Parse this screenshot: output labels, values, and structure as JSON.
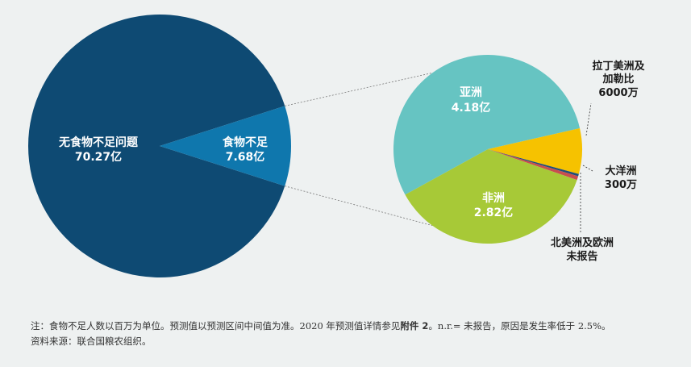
{
  "chart_data": [
    {
      "type": "pie",
      "slices": [
        {
          "label": "无食物不足问题",
          "value_text": "70.27亿",
          "value": 7027,
          "color": "#0e4a73"
        },
        {
          "label": "食物不足",
          "value_text": "7.68亿",
          "value": 768,
          "color": "#0f77ad"
        }
      ]
    },
    {
      "type": "pie",
      "slices": [
        {
          "label": "亚洲",
          "value_text": "4.18亿",
          "value": 418,
          "color": "#66c4c2"
        },
        {
          "label_lines": [
            "拉丁美洲及",
            "加勒比"
          ],
          "value_text": "6000万",
          "value": 60,
          "color": "#f6c200"
        },
        {
          "label": "大洋洲",
          "value_text": "300万",
          "value": 3,
          "color": "#1f4e79"
        },
        {
          "label_lines": [
            "北美洲及欧洲",
            "未报告"
          ],
          "value": 5,
          "color": "#c84e4e"
        },
        {
          "label": "非洲",
          "value_text": "2.82亿",
          "value": 282,
          "color": "#a7c937"
        }
      ]
    }
  ],
  "note": {
    "prefix": "注：食物不足人数以百万为单位。预测值以预测区间中间值为准。2020 年预测值详情参见",
    "bold": "附件 2",
    "suffix": "。n.r.= 未报告，原因是发生率低于 2.5%。",
    "source": "资料来源：联合国粮农组织。"
  }
}
